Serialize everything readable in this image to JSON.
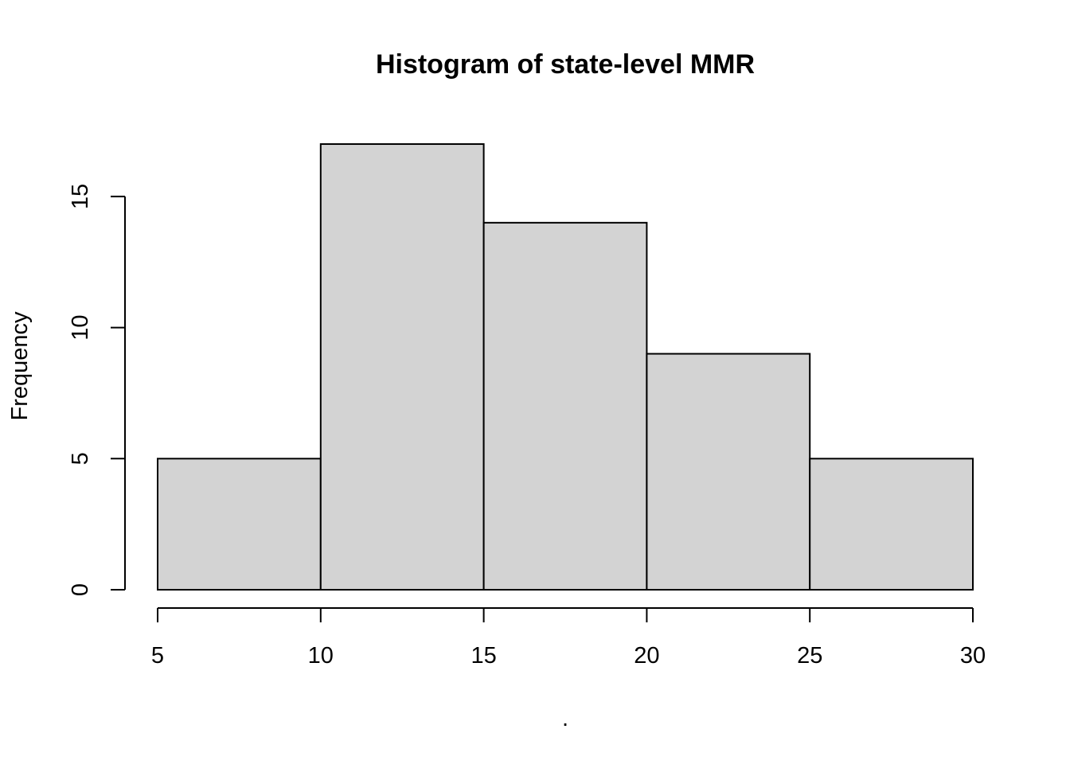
{
  "colors": {
    "bar_fill": "#d3d3d3",
    "bar_stroke": "#000000",
    "axis": "#000000",
    "background": "#ffffff"
  },
  "chart_data": {
    "type": "bar",
    "subtype": "histogram",
    "title": "Histogram of state-level MMR",
    "xlabel": ".",
    "ylabel": "Frequency",
    "bins": [
      {
        "start": 5,
        "end": 10,
        "count": 5
      },
      {
        "start": 10,
        "end": 15,
        "count": 17
      },
      {
        "start": 15,
        "end": 20,
        "count": 14
      },
      {
        "start": 20,
        "end": 25,
        "count": 9
      },
      {
        "start": 25,
        "end": 30,
        "count": 5
      }
    ],
    "xlim": [
      5,
      30
    ],
    "ylim": [
      0,
      17
    ],
    "x_ticks": [
      5,
      10,
      15,
      20,
      25,
      30
    ],
    "y_ticks": [
      0,
      5,
      10,
      15
    ],
    "grid": false,
    "legend": "none"
  }
}
